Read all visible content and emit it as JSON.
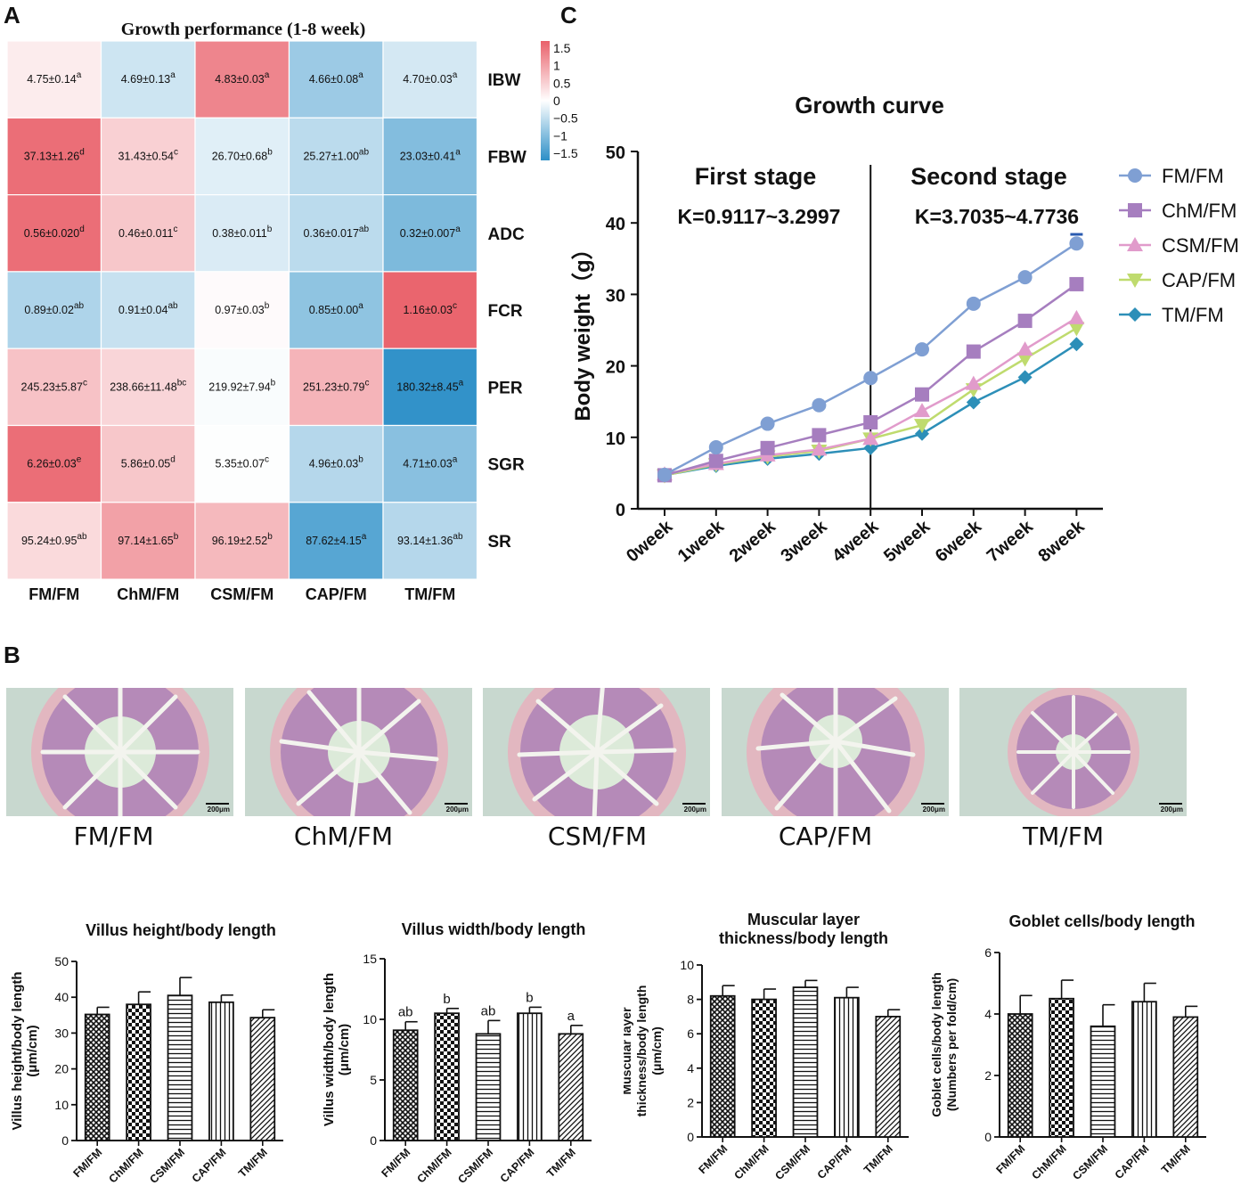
{
  "panel_letters": {
    "a": "A",
    "b": "B",
    "c": "C"
  },
  "chart_data": [
    {
      "id": "A",
      "type": "heatmap",
      "title": "Growth performance (1-8 week)",
      "columns": [
        "FM/FM",
        "ChM/FM",
        "CSM/FM",
        "CAP/FM",
        "TM/FM"
      ],
      "rows": [
        {
          "name": "IBW",
          "z": [
            0.2,
            -0.4,
            1.3,
            -0.8,
            -0.35
          ],
          "cells": [
            {
              "v": "4.75±0.14",
              "s": "a"
            },
            {
              "v": "4.69±0.13",
              "s": "a"
            },
            {
              "v": "4.83±0.03",
              "s": "a"
            },
            {
              "v": "4.66±0.08",
              "s": "a"
            },
            {
              "v": "4.70±0.03",
              "s": "a"
            }
          ]
        },
        {
          "name": "FBW",
          "z": [
            1.55,
            0.5,
            -0.25,
            -0.55,
            -1.0
          ],
          "cells": [
            {
              "v": "37.13±1.26",
              "s": "d"
            },
            {
              "v": "31.43±0.54",
              "s": "c"
            },
            {
              "v": "26.70±0.68",
              "s": "b"
            },
            {
              "v": "25.27±1.00",
              "s": "ab"
            },
            {
              "v": "23.03±0.41",
              "s": "a"
            }
          ]
        },
        {
          "name": "ADC",
          "z": [
            1.55,
            0.6,
            -0.3,
            -0.55,
            -1.05
          ],
          "cells": [
            {
              "v": "0.56±0.020",
              "s": "d"
            },
            {
              "v": "0.46±0.011",
              "s": "c"
            },
            {
              "v": "0.38±0.011",
              "s": "b"
            },
            {
              "v": "0.36±0.017",
              "s": "ab"
            },
            {
              "v": "0.32±0.007",
              "s": "a"
            }
          ]
        },
        {
          "name": "FCR",
          "z": [
            -0.65,
            -0.45,
            0.05,
            -0.9,
            1.65
          ],
          "cells": [
            {
              "v": "0.89±0.02",
              "s": "ab"
            },
            {
              "v": "0.91±0.04",
              "s": "ab"
            },
            {
              "v": "0.97±0.03",
              "s": "b"
            },
            {
              "v": "0.85±0.00",
              "s": "a"
            },
            {
              "v": "1.16±0.03",
              "s": "c"
            }
          ]
        },
        {
          "name": "PER",
          "z": [
            0.65,
            0.45,
            -0.05,
            0.8,
            -1.65
          ],
          "cells": [
            {
              "v": "245.23±5.87",
              "s": "c"
            },
            {
              "v": "238.66±11.48",
              "s": "bc"
            },
            {
              "v": "219.92±7.94",
              "s": "b"
            },
            {
              "v": "251.23±0.79",
              "s": "c"
            },
            {
              "v": "180.32±8.45",
              "s": "a"
            }
          ]
        },
        {
          "name": "SGR",
          "z": [
            1.55,
            0.6,
            -0.02,
            -0.6,
            -0.95
          ],
          "cells": [
            {
              "v": "6.26±0.03",
              "s": "e"
            },
            {
              "v": "5.86±0.05",
              "s": "d"
            },
            {
              "v": "5.35±0.07",
              "s": "c"
            },
            {
              "v": "4.96±0.03",
              "s": "b"
            },
            {
              "v": "4.71±0.03",
              "s": "a"
            }
          ]
        },
        {
          "name": "SR",
          "z": [
            0.4,
            1.0,
            0.75,
            -1.35,
            -0.6
          ],
          "cells": [
            {
              "v": "95.24±0.95",
              "s": "ab"
            },
            {
              "v": "97.14±1.65",
              "s": "b"
            },
            {
              "v": "96.19±2.52",
              "s": "b"
            },
            {
              "v": "87.62±4.15",
              "s": "a"
            },
            {
              "v": "93.14±1.36",
              "s": "ab"
            }
          ]
        }
      ],
      "colorbar": {
        "ticks": [
          "1.5",
          "1",
          "0.5",
          "0",
          "−0.5",
          "−1",
          "−1.5"
        ],
        "range": [
          -1.7,
          1.7
        ],
        "low_color": "#2c8fc7",
        "mid_color": "#ffffff",
        "high_color": "#e9606a"
      }
    },
    {
      "id": "C",
      "type": "line",
      "title": "Growth curve",
      "ylabel": "Body weight（g）",
      "ylim": [
        0,
        50
      ],
      "yticks": [
        "0",
        "10",
        "20",
        "30",
        "40",
        "50"
      ],
      "categories": [
        "0week",
        "1week",
        "2week",
        "3week",
        "4week",
        "5week",
        "6week",
        "7week",
        "8week"
      ],
      "stage_divider_at": "4week",
      "annotations": [
        {
          "label": "First stage",
          "k": "K=0.9117~3.2997"
        },
        {
          "label": "Second stage",
          "k": "K=3.7035~4.7736"
        }
      ],
      "series": [
        {
          "name": "FM/FM",
          "color": "#7f9fd3",
          "marker": "circle",
          "values": [
            4.75,
            8.6,
            11.9,
            14.5,
            18.3,
            22.3,
            28.7,
            32.4,
            37.13
          ]
        },
        {
          "name": "ChM/FM",
          "color": "#a67ebf",
          "marker": "square",
          "values": [
            4.69,
            6.7,
            8.5,
            10.3,
            12.1,
            16.0,
            22.0,
            26.3,
            31.43
          ]
        },
        {
          "name": "CSM/FM",
          "color": "#e19bcb",
          "marker": "triangle-up",
          "values": [
            4.83,
            6.3,
            7.5,
            8.3,
            9.8,
            13.7,
            17.5,
            22.3,
            26.7
          ]
        },
        {
          "name": "CAP/FM",
          "color": "#bfdb6e",
          "marker": "triangle-down",
          "values": [
            4.66,
            6.2,
            7.3,
            8.1,
            9.8,
            11.7,
            16.7,
            21.0,
            25.27
          ]
        },
        {
          "name": "TM/FM",
          "color": "#2d8fb8",
          "marker": "diamond",
          "values": [
            4.7,
            6.0,
            7.0,
            7.7,
            8.5,
            10.5,
            14.9,
            18.4,
            23.03
          ]
        }
      ]
    },
    {
      "id": "B1",
      "type": "bar",
      "title": "Villus height/body length",
      "ylabel_lines": [
        "Villus height/body length",
        "(μm/cm)"
      ],
      "ylim": [
        0,
        50
      ],
      "yticks": [
        "0",
        "10",
        "20",
        "30",
        "40",
        "50"
      ],
      "categories": [
        "FM/FM",
        "ChM/FM",
        "CSM/FM",
        "CAP/FM",
        "TM/FM"
      ],
      "values": [
        35.2,
        38.0,
        40.5,
        38.6,
        34.3
      ],
      "errors": [
        2.0,
        3.5,
        5.0,
        2.0,
        2.2
      ],
      "letters": [
        "",
        "",
        "",
        "",
        ""
      ]
    },
    {
      "id": "B2",
      "type": "bar",
      "title": "Villus width/body length",
      "ylabel_lines": [
        "Villus width/body length",
        "(μm/cm)"
      ],
      "ylim": [
        0,
        15
      ],
      "yticks": [
        "0",
        "5",
        "10",
        "15"
      ],
      "categories": [
        "FM/FM",
        "ChM/FM",
        "CSM/FM",
        "CAP/FM",
        "TM/FM"
      ],
      "values": [
        9.1,
        10.5,
        8.8,
        10.5,
        8.8
      ],
      "errors": [
        0.7,
        0.4,
        1.1,
        0.5,
        0.7
      ],
      "letters": [
        "ab",
        "b",
        "ab",
        "b",
        "a"
      ]
    },
    {
      "id": "B3",
      "type": "bar",
      "title_lines": [
        "Muscular layer",
        "thickness/body length"
      ],
      "ylabel_lines": [
        "Muscular layer",
        "thickness/body length",
        "(μm/cm)"
      ],
      "ylim": [
        0,
        10
      ],
      "yticks": [
        "0",
        "2",
        "4",
        "6",
        "8",
        "10"
      ],
      "categories": [
        "FM/FM",
        "ChM/FM",
        "CSM/FM",
        "CAP/FM",
        "TM/FM"
      ],
      "values": [
        8.2,
        8.0,
        8.7,
        8.1,
        7.0
      ],
      "errors": [
        0.6,
        0.6,
        0.4,
        0.6,
        0.4
      ],
      "letters": [
        "",
        "",
        "",
        "",
        ""
      ]
    },
    {
      "id": "B4",
      "type": "bar",
      "title": "Goblet cells/body length",
      "ylabel_lines": [
        "Goblet cells/body length",
        "(Numbers per fold/cm)"
      ],
      "ylim": [
        0,
        6
      ],
      "yticks": [
        "0",
        "2",
        "4",
        "6"
      ],
      "categories": [
        "FM/FM",
        "ChM/FM",
        "CSM/FM",
        "CAP/FM",
        "TM/FM"
      ],
      "values": [
        4.0,
        4.5,
        3.6,
        4.4,
        3.9
      ],
      "errors": [
        0.6,
        0.6,
        0.7,
        0.6,
        0.35
      ],
      "letters": [
        "",
        "",
        "",
        "",
        ""
      ]
    }
  ],
  "micrographs": {
    "scale": "200μm",
    "labels": [
      "FM/FM",
      "ChM/FM",
      "CSM/FM",
      "CAP/FM",
      "TM/FM"
    ]
  }
}
